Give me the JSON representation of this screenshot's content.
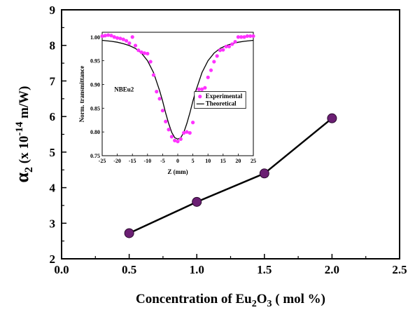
{
  "chart_data": [
    {
      "type": "line",
      "xlabel_parts": {
        "pre": "Concentration of Eu",
        "sub1": "2",
        "mid": "O",
        "sub2": "3",
        "post": " ( mol %)"
      },
      "ylabel_parts": {
        "alpha": "α",
        "sub": "2",
        "pre": " (x 10",
        "sup": "-14",
        "post": " m/W)"
      },
      "xlim": [
        0.0,
        2.5
      ],
      "ylim": [
        2,
        9
      ],
      "xticks": [
        0.0,
        0.5,
        1.0,
        1.5,
        2.0,
        2.5
      ],
      "xtick_labels": [
        "0.0",
        "0.5",
        "1.0",
        "1.5",
        "2.0",
        "2.5"
      ],
      "yticks": [
        2,
        3,
        4,
        5,
        6,
        7,
        8,
        9
      ],
      "ytick_labels": [
        "2",
        "3",
        "4",
        "5",
        "6",
        "7",
        "8",
        "9"
      ],
      "series": [
        {
          "x": [
            0.5,
            1.0,
            1.5,
            2.0
          ],
          "y": [
            2.72,
            3.6,
            4.4,
            5.95
          ],
          "color": "#6b1f73"
        }
      ]
    },
    {
      "type": "scatter",
      "inset": true,
      "sample_label": "NBEu2",
      "xlabel": "Z (mm)",
      "ylabel": "Norm. transmittance",
      "xlim": [
        -25,
        25
      ],
      "ylim": [
        0.75,
        1.01
      ],
      "xticks": [
        -25,
        -20,
        -15,
        -10,
        -5,
        0,
        5,
        10,
        15,
        20,
        25
      ],
      "xtick_labels": [
        "-25",
        "-20",
        "-15",
        "-10",
        "-5",
        "0",
        "5",
        "10",
        "15",
        "20",
        "25"
      ],
      "yticks": [
        0.75,
        0.8,
        0.85,
        0.9,
        0.95,
        1.0
      ],
      "ytick_labels": [
        "0.75",
        "0.80",
        "0.85",
        "0.90",
        "0.95",
        "1.00"
      ],
      "legend": [
        "Experimental",
        "Theoretical"
      ],
      "legend_position": "right",
      "experimental_color": "#ff33ff",
      "theoretical_color": "#000000",
      "experimental": {
        "x": [
          -25,
          -24,
          -23,
          -22,
          -21,
          -20,
          -19,
          -18,
          -17,
          -16,
          -15,
          -14,
          -13,
          -12,
          -11,
          -10,
          -9,
          -8,
          -7,
          -6,
          -5,
          -4,
          -3,
          -2,
          -1,
          0,
          1,
          2,
          3,
          4,
          5,
          6,
          7,
          8,
          9,
          10,
          11,
          12,
          13,
          14,
          15,
          16,
          17,
          18,
          19,
          20,
          21,
          22,
          23,
          24,
          25
        ],
        "y": [
          1.002,
          1.003,
          1.004,
          1.003,
          1.0,
          0.998,
          0.997,
          0.995,
          0.992,
          0.987,
          1.0,
          0.982,
          0.972,
          0.968,
          0.966,
          0.965,
          0.948,
          0.92,
          0.885,
          0.87,
          0.845,
          0.822,
          0.805,
          0.79,
          0.782,
          0.78,
          0.785,
          0.798,
          0.8,
          0.798,
          0.82,
          0.866,
          0.89,
          0.89,
          0.893,
          0.915,
          0.93,
          0.948,
          0.96,
          0.972,
          0.973,
          0.98,
          0.98,
          0.985,
          0.99,
          1.0,
          1.0,
          1.0,
          1.002,
          1.002,
          1.002
        ]
      },
      "theoretical": {
        "x": [
          -25,
          -22,
          -20,
          -18,
          -16,
          -14,
          -12,
          -10,
          -8,
          -6,
          -5,
          -4,
          -3,
          -2,
          -1,
          0,
          1,
          2,
          3,
          4,
          5,
          6,
          8,
          10,
          12,
          14,
          16,
          18,
          20,
          22,
          25
        ],
        "y": [
          0.993,
          0.991,
          0.989,
          0.986,
          0.982,
          0.976,
          0.966,
          0.95,
          0.925,
          0.887,
          0.865,
          0.84,
          0.818,
          0.799,
          0.788,
          0.785,
          0.788,
          0.799,
          0.818,
          0.84,
          0.865,
          0.887,
          0.925,
          0.95,
          0.966,
          0.976,
          0.982,
          0.986,
          0.989,
          0.991,
          0.993
        ]
      }
    }
  ]
}
